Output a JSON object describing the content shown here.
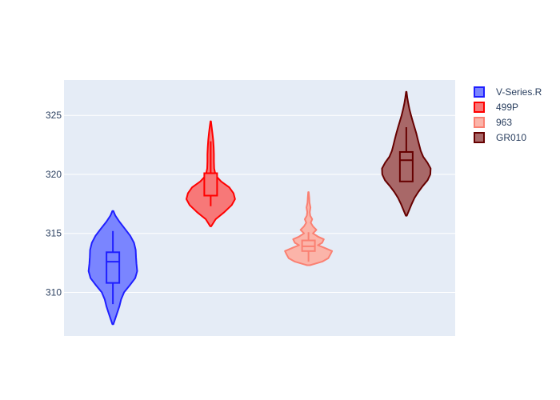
{
  "chart_data": {
    "type": "violin",
    "title": "",
    "xlabel": "",
    "ylabel": "",
    "ylim": [
      306.3,
      328.0
    ],
    "yticks": [
      310,
      315,
      320,
      325
    ],
    "grid": true,
    "legend_position": "top-right",
    "series": [
      {
        "name": "V-Series.R",
        "color": "#1f1fff",
        "fill": "#7a85ff",
        "stats": {
          "min": 309.0,
          "q1": 310.8,
          "median": 312.6,
          "q3": 313.4,
          "max": 315.2
        },
        "range": [
          307.3,
          316.9
        ],
        "density": [
          [
            307.3,
            0.02
          ],
          [
            307.8,
            0.1
          ],
          [
            308.3,
            0.18
          ],
          [
            308.8,
            0.26
          ],
          [
            309.4,
            0.33
          ],
          [
            310.0,
            0.45
          ],
          [
            310.6,
            0.68
          ],
          [
            311.2,
            0.9
          ],
          [
            311.8,
            0.98
          ],
          [
            312.4,
            0.95
          ],
          [
            313.0,
            0.93
          ],
          [
            313.6,
            0.92
          ],
          [
            314.2,
            0.85
          ],
          [
            314.8,
            0.7
          ],
          [
            315.4,
            0.48
          ],
          [
            316.0,
            0.26
          ],
          [
            316.5,
            0.1
          ],
          [
            316.9,
            0.02
          ]
        ]
      },
      {
        "name": "499P",
        "color": "#ff0000",
        "fill": "#f77878",
        "stats": {
          "min": 317.3,
          "q1": 318.2,
          "median": 318.2,
          "q3": 320.1,
          "max": 322.8
        },
        "range": [
          315.6,
          324.5
        ],
        "density": [
          [
            315.6,
            0.02
          ],
          [
            316.2,
            0.2
          ],
          [
            316.8,
            0.55
          ],
          [
            317.4,
            0.85
          ],
          [
            317.9,
            0.98
          ],
          [
            318.4,
            0.92
          ],
          [
            318.9,
            0.75
          ],
          [
            319.4,
            0.42
          ],
          [
            319.9,
            0.2
          ],
          [
            320.5,
            0.14
          ],
          [
            321.1,
            0.13
          ],
          [
            321.7,
            0.13
          ],
          [
            322.3,
            0.12
          ],
          [
            322.9,
            0.1
          ],
          [
            323.5,
            0.07
          ],
          [
            324.0,
            0.04
          ],
          [
            324.5,
            0.01
          ]
        ]
      },
      {
        "name": "963",
        "color": "#fa8072",
        "fill": "#fbb4a9",
        "stats": {
          "min": 312.6,
          "q1": 313.5,
          "median": 313.9,
          "q3": 314.4,
          "max": 315.1
        },
        "range": [
          312.3,
          318.5
        ],
        "density": [
          [
            312.3,
            0.06
          ],
          [
            312.6,
            0.55
          ],
          [
            312.9,
            0.8
          ],
          [
            313.2,
            0.88
          ],
          [
            313.5,
            0.95
          ],
          [
            313.8,
            0.62
          ],
          [
            314.0,
            0.38
          ],
          [
            314.2,
            0.55
          ],
          [
            314.5,
            0.62
          ],
          [
            314.7,
            0.4
          ],
          [
            315.0,
            0.18
          ],
          [
            315.3,
            0.32
          ],
          [
            315.6,
            0.18
          ],
          [
            315.9,
            0.09
          ],
          [
            316.2,
            0.15
          ],
          [
            316.5,
            0.07
          ],
          [
            316.8,
            0.05
          ],
          [
            317.2,
            0.08
          ],
          [
            317.6,
            0.04
          ],
          [
            318.0,
            0.03
          ],
          [
            318.5,
            0.01
          ]
        ]
      },
      {
        "name": "GR010",
        "color": "#660000",
        "fill": "#a86868",
        "stats": {
          "min": 319.4,
          "q1": 319.4,
          "median": 321.2,
          "q3": 321.9,
          "max": 324.0
        },
        "range": [
          316.5,
          327.0
        ],
        "density": [
          [
            316.5,
            0.02
          ],
          [
            317.0,
            0.12
          ],
          [
            317.5,
            0.22
          ],
          [
            318.0,
            0.33
          ],
          [
            318.5,
            0.48
          ],
          [
            319.0,
            0.66
          ],
          [
            319.5,
            0.86
          ],
          [
            320.0,
            0.97
          ],
          [
            320.5,
            0.98
          ],
          [
            321.0,
            0.85
          ],
          [
            321.5,
            0.68
          ],
          [
            322.0,
            0.58
          ],
          [
            322.5,
            0.52
          ],
          [
            323.0,
            0.46
          ],
          [
            323.5,
            0.4
          ],
          [
            324.0,
            0.33
          ],
          [
            324.5,
            0.26
          ],
          [
            325.0,
            0.19
          ],
          [
            325.5,
            0.13
          ],
          [
            326.0,
            0.08
          ],
          [
            326.5,
            0.04
          ],
          [
            327.0,
            0.01
          ]
        ]
      }
    ]
  }
}
